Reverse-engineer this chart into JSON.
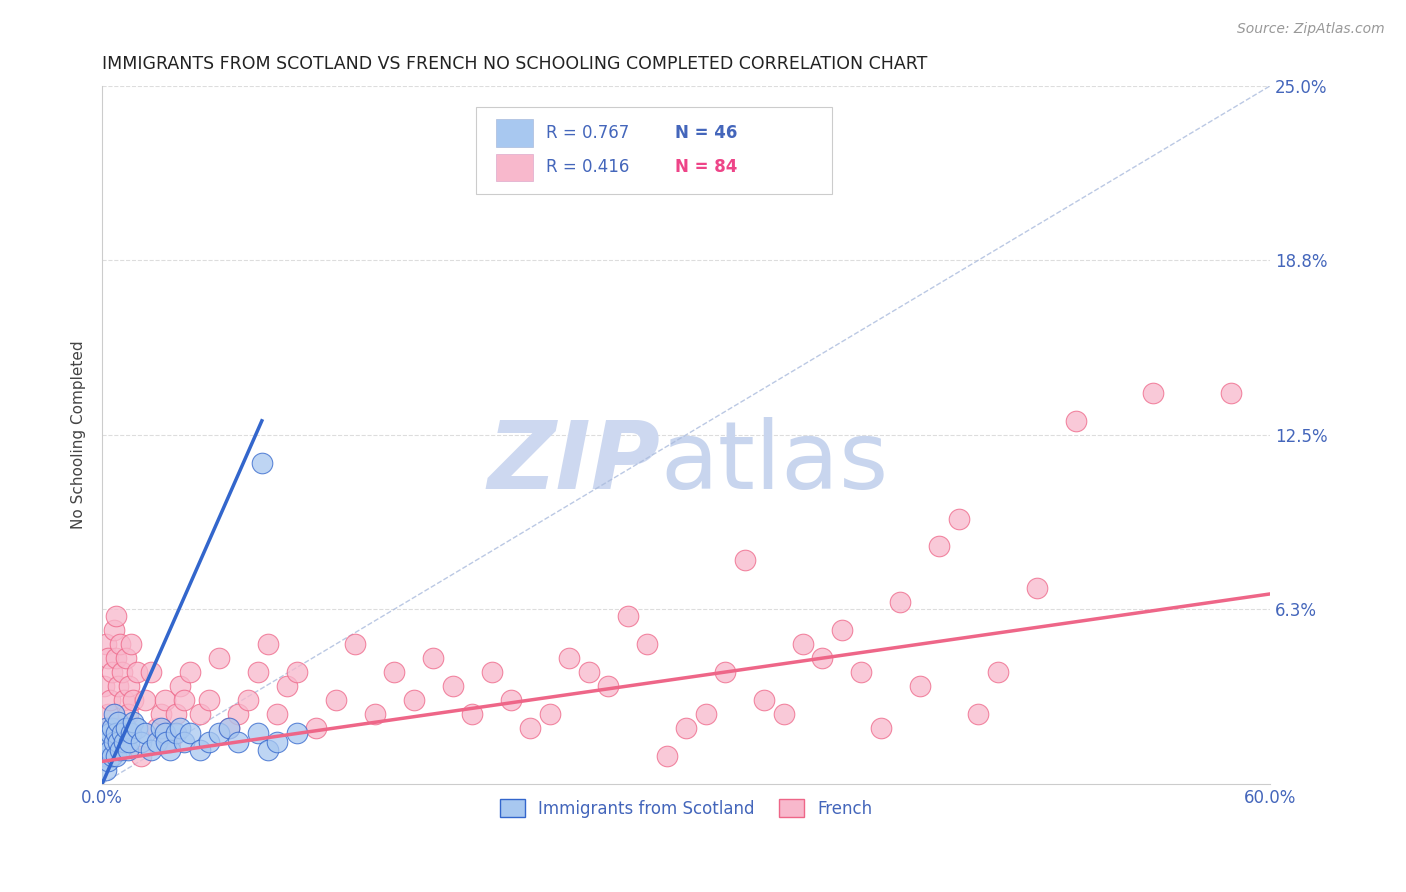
{
  "title": "IMMIGRANTS FROM SCOTLAND VS FRENCH NO SCHOOLING COMPLETED CORRELATION CHART",
  "source": "Source: ZipAtlas.com",
  "ylabel": "No Schooling Completed",
  "legend_labels": [
    "Immigrants from Scotland",
    "French"
  ],
  "scotland_color": "#a8c8f0",
  "french_color": "#f8b8cc",
  "scotland_line_color": "#3366cc",
  "french_line_color": "#ee6688",
  "dashed_line_color": "#aabbdd",
  "background_color": "#ffffff",
  "grid_color": "#dddddd",
  "x_min": 0.0,
  "x_max": 0.6,
  "y_min": 0.0,
  "y_max": 0.25,
  "scotland_x": [
    0.001,
    0.002,
    0.002,
    0.003,
    0.003,
    0.004,
    0.004,
    0.005,
    0.005,
    0.006,
    0.006,
    0.007,
    0.007,
    0.008,
    0.008,
    0.009,
    0.01,
    0.011,
    0.012,
    0.013,
    0.014,
    0.015,
    0.016,
    0.018,
    0.02,
    0.022,
    0.025,
    0.028,
    0.03,
    0.032,
    0.033,
    0.035,
    0.038,
    0.04,
    0.042,
    0.045,
    0.05,
    0.055,
    0.06,
    0.065,
    0.07,
    0.08,
    0.085,
    0.09,
    0.1,
    0.082
  ],
  "scotland_y": [
    0.01,
    0.02,
    0.005,
    0.015,
    0.008,
    0.012,
    0.018,
    0.01,
    0.02,
    0.015,
    0.025,
    0.018,
    0.01,
    0.022,
    0.015,
    0.012,
    0.018,
    0.015,
    0.02,
    0.012,
    0.015,
    0.018,
    0.022,
    0.02,
    0.015,
    0.018,
    0.012,
    0.015,
    0.02,
    0.018,
    0.015,
    0.012,
    0.018,
    0.02,
    0.015,
    0.018,
    0.012,
    0.015,
    0.018,
    0.02,
    0.015,
    0.018,
    0.012,
    0.015,
    0.018,
    0.115
  ],
  "french_x": [
    0.001,
    0.002,
    0.003,
    0.003,
    0.004,
    0.005,
    0.005,
    0.006,
    0.006,
    0.007,
    0.007,
    0.008,
    0.008,
    0.009,
    0.01,
    0.011,
    0.012,
    0.013,
    0.014,
    0.015,
    0.016,
    0.018,
    0.02,
    0.022,
    0.025,
    0.028,
    0.03,
    0.032,
    0.035,
    0.038,
    0.04,
    0.042,
    0.045,
    0.05,
    0.055,
    0.06,
    0.065,
    0.07,
    0.075,
    0.08,
    0.085,
    0.09,
    0.095,
    0.1,
    0.11,
    0.12,
    0.13,
    0.14,
    0.15,
    0.16,
    0.17,
    0.18,
    0.19,
    0.2,
    0.21,
    0.22,
    0.23,
    0.24,
    0.25,
    0.26,
    0.27,
    0.28,
    0.29,
    0.3,
    0.31,
    0.32,
    0.33,
    0.34,
    0.35,
    0.36,
    0.37,
    0.38,
    0.39,
    0.4,
    0.41,
    0.42,
    0.43,
    0.44,
    0.45,
    0.46,
    0.48,
    0.5,
    0.54,
    0.58
  ],
  "french_y": [
    0.035,
    0.05,
    0.025,
    0.045,
    0.03,
    0.04,
    0.02,
    0.055,
    0.015,
    0.045,
    0.06,
    0.035,
    0.02,
    0.05,
    0.04,
    0.03,
    0.045,
    0.025,
    0.035,
    0.05,
    0.03,
    0.04,
    0.01,
    0.03,
    0.04,
    0.02,
    0.025,
    0.03,
    0.015,
    0.025,
    0.035,
    0.03,
    0.04,
    0.025,
    0.03,
    0.045,
    0.02,
    0.025,
    0.03,
    0.04,
    0.05,
    0.025,
    0.035,
    0.04,
    0.02,
    0.03,
    0.05,
    0.025,
    0.04,
    0.03,
    0.045,
    0.035,
    0.025,
    0.04,
    0.03,
    0.02,
    0.025,
    0.045,
    0.04,
    0.035,
    0.06,
    0.05,
    0.01,
    0.02,
    0.025,
    0.04,
    0.08,
    0.03,
    0.025,
    0.05,
    0.045,
    0.055,
    0.04,
    0.02,
    0.065,
    0.035,
    0.085,
    0.095,
    0.025,
    0.04,
    0.07,
    0.13,
    0.14,
    0.14
  ],
  "scotland_line_x": [
    0.0,
    0.082
  ],
  "scotland_line_y": [
    0.0,
    0.13
  ],
  "french_line_x": [
    0.0,
    0.6
  ],
  "french_line_y": [
    0.008,
    0.068
  ]
}
